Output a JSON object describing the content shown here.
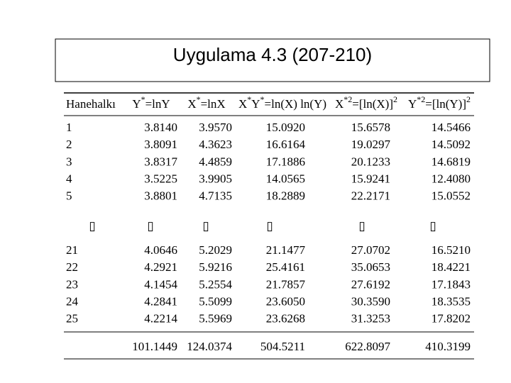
{
  "title": "Uygulama 4.3 (207-210)",
  "table": {
    "header": [
      [
        "Hanehalkı"
      ],
      [
        "Y",
        "*",
        "=lnY"
      ],
      [
        "X",
        "*",
        "=lnX"
      ],
      [
        "X",
        "*",
        "Y",
        "*",
        "=ln(X) ln(Y)"
      ],
      [
        "X",
        "*2",
        "=[ln(X)]",
        "2"
      ],
      [
        "Y",
        "*2",
        "=[ln(Y)]",
        "2"
      ]
    ],
    "rows": [
      [
        "1",
        "3.8140",
        "3.9570",
        "15.0920",
        "15.6578",
        "14.5466"
      ],
      [
        "2",
        "3.8091",
        "4.3623",
        "16.6164",
        "19.0297",
        "14.5092"
      ],
      [
        "3",
        "3.8317",
        "4.4859",
        "17.1886",
        "20.1233",
        "14.6819"
      ],
      [
        "4",
        "3.5225",
        "3.9905",
        "14.0565",
        "15.9241",
        "12.4080"
      ],
      [
        "5",
        "3.8801",
        "4.7135",
        "18.2889",
        "22.2171",
        "15.0552"
      ]
    ],
    "ellipsis": [
      "▯",
      "▯",
      "▯",
      "▯",
      "▯",
      "▯"
    ],
    "rows_end": [
      [
        "21",
        "4.0646",
        "5.2029",
        "21.1477",
        "27.0702",
        "16.5210"
      ],
      [
        "22",
        "4.2921",
        "5.9216",
        "25.4161",
        "35.0653",
        "18.4221"
      ],
      [
        "23",
        "4.1454",
        "5.2554",
        "21.7857",
        "27.6192",
        "17.1843"
      ],
      [
        "24",
        "4.2841",
        "5.5099",
        "23.6050",
        "30.3590",
        "18.3535"
      ],
      [
        "25",
        "4.2214",
        "5.5969",
        "23.6268",
        "31.3253",
        "17.8202"
      ]
    ],
    "totals": [
      "101.1449",
      "124.0374",
      "504.5211",
      "622.8097",
      "410.3199"
    ]
  }
}
